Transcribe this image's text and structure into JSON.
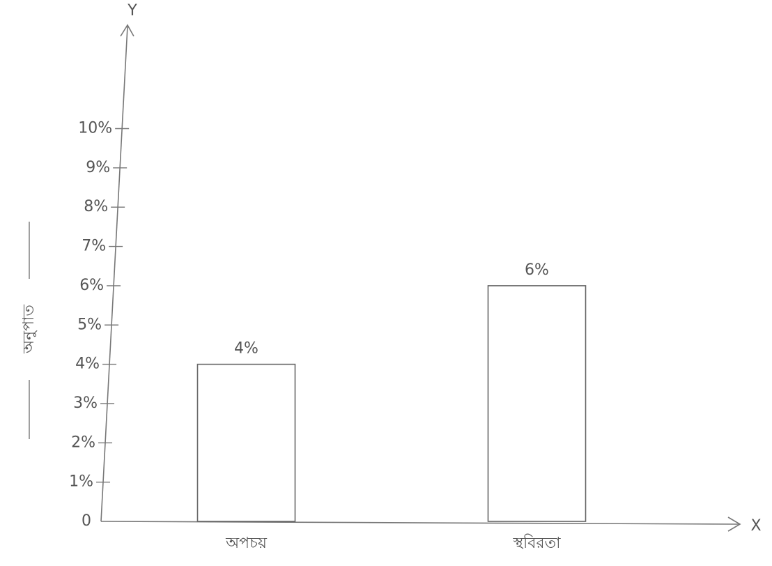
{
  "chart_data": {
    "type": "bar",
    "x_label": "X",
    "y_label": "Y",
    "y_axis_title": "অনুপাত",
    "categories": [
      "অপচয়",
      "স্থবিরতা"
    ],
    "values": [
      4,
      6
    ],
    "value_labels": [
      "4%",
      "6%"
    ],
    "color": "#666666",
    "ylim": [
      0,
      12.6
    ],
    "yticks": [
      0,
      {
        "value": 1,
        "label": "1%"
      },
      {
        "value": 2,
        "label": "2%"
      },
      {
        "value": 3,
        "label": "3%"
      },
      {
        "value": 4,
        "label": "4%"
      },
      {
        "value": 5,
        "label": "5%"
      },
      {
        "value": 6,
        "label": "6%"
      },
      {
        "value": 7,
        "label": "7%"
      },
      {
        "value": 8,
        "label": "8%"
      },
      {
        "value": 9,
        "label": "9%"
      },
      {
        "value": 10,
        "label": "10%"
      }
    ],
    "grid": false
  }
}
